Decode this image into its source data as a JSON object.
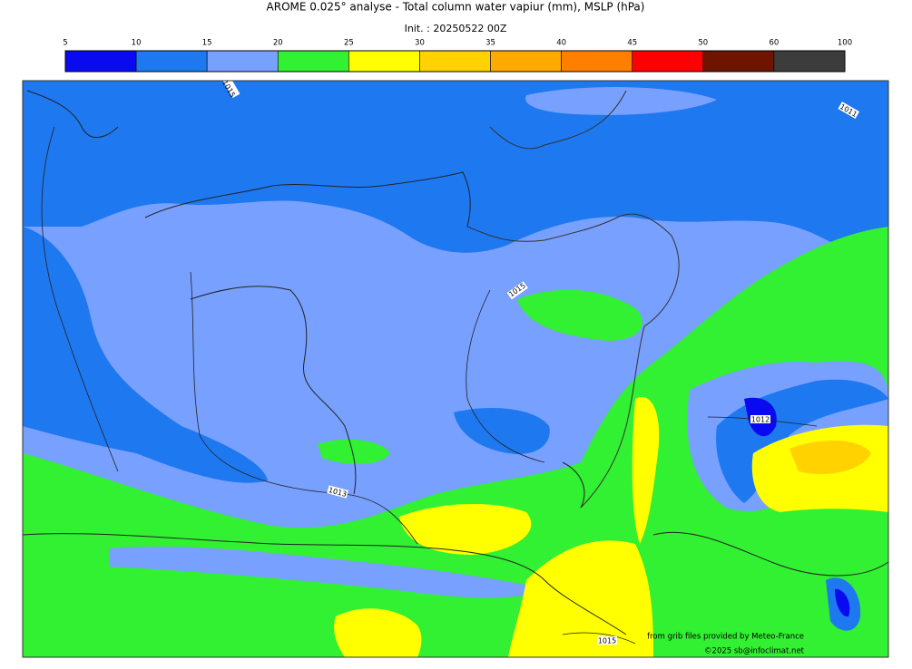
{
  "header": {
    "title": "AROME 0.025° analyse - Total column water vapiur (mm), MSLP (hPa)",
    "init": "Init. : 20250522 00Z"
  },
  "colorbar": {
    "ticks": [
      5,
      10,
      15,
      20,
      25,
      30,
      35,
      40,
      45,
      50,
      60,
      100
    ],
    "colors": [
      "#0a0af0",
      "#1e78f0",
      "#78a0ff",
      "#32f032",
      "#ffff00",
      "#ffd200",
      "#ffaa00",
      "#ff7f00",
      "#ff0000",
      "#6e1400",
      "#3c3c3c"
    ]
  },
  "isobar_labels": [
    "1015",
    "1011",
    "1015",
    "1012",
    "1013",
    "1015"
  ],
  "credits": [
    "from grib files provided by Meteo-France",
    "©2025 sb@infoclimat.net"
  ]
}
